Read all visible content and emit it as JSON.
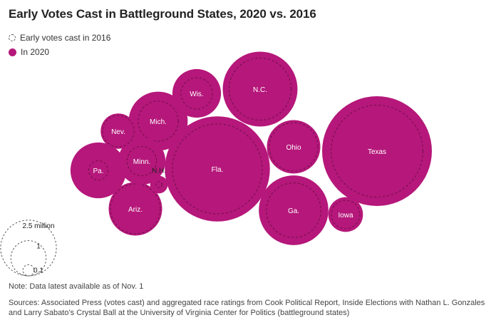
{
  "title": "Early Votes Cast in Battleground States, 2020 vs. 2016",
  "legend": {
    "item_2016": "Early votes cast in 2016",
    "item_2020": "In 2020"
  },
  "colors": {
    "bubble_2020": "#b5177a",
    "outline_2016": "#5a5a5a",
    "outline_2016_inside": "#6d1047",
    "text_on_bubble": "#ffffff"
  },
  "chart_data": {
    "type": "bubble",
    "title": "Early Votes Cast in Battleground States, 2020 vs. 2016",
    "unit": "votes (millions)",
    "series": [
      {
        "name": "Early votes cast in 2016",
        "style": "dashed outline"
      },
      {
        "name": "In 2020",
        "style": "filled circle"
      }
    ],
    "states": [
      {
        "label": "Texas",
        "early_2020_millions": 9.7,
        "early_2016_millions": 6.8
      },
      {
        "label": "Fla.",
        "early_2020_millions": 8.9,
        "early_2016_millions": 6.5
      },
      {
        "label": "N.C.",
        "early_2020_millions": 4.5,
        "early_2016_millions": 3.1
      },
      {
        "label": "Ga.",
        "early_2020_millions": 3.9,
        "early_2016_millions": 2.4
      },
      {
        "label": "Ohio",
        "early_2020_millions": 2.3,
        "early_2016_millions": 1.9
      },
      {
        "label": "Mich.",
        "early_2020_millions": 2.8,
        "early_2016_millions": 1.3
      },
      {
        "label": "Wis.",
        "early_2020_millions": 1.9,
        "early_2016_millions": 0.8
      },
      {
        "label": "Pa.",
        "early_2020_millions": 2.5,
        "early_2016_millions": 0.3
      },
      {
        "label": "Ariz.",
        "early_2020_millions": 2.3,
        "early_2016_millions": 2.0
      },
      {
        "label": "Minn.",
        "early_2020_millions": 1.8,
        "early_2016_millions": 0.7
      },
      {
        "label": "Nev.",
        "early_2020_millions": 1.0,
        "early_2016_millions": 0.8
      },
      {
        "label": "Iowa",
        "early_2020_millions": 0.97,
        "early_2016_millions": 0.65
      },
      {
        "label": "N.H.",
        "early_2020_millions": 0.25,
        "early_2016_millions": 0.03
      }
    ],
    "scale_legend": [
      {
        "label": "2.5 million",
        "value_millions": 2.5
      },
      {
        "label": "1",
        "value_millions": 1
      },
      {
        "label": "0.1",
        "value_millions": 0.1
      }
    ]
  },
  "note": "Note: Data latest available as of Nov. 1",
  "sources": "Sources: Associated Press (votes cast) and aggregated race ratings from Cook Political Report, Inside Elections with Nathan L. Gonzales and Larry Sabato’s Crystal Ball at the University of Virginia Center for Politics (battleground states)"
}
